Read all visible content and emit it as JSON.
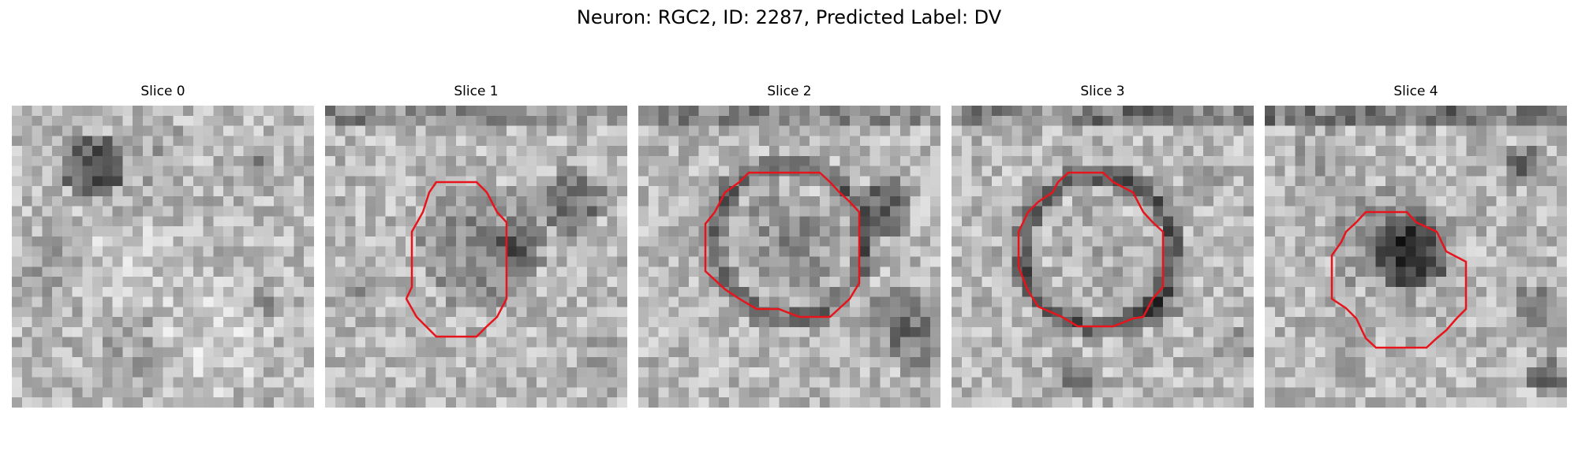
{
  "figure": {
    "title": "Neuron: RGC2, ID: 2287, Predicted Label: DV",
    "outline_color": "#e8141c",
    "colormap": "gray"
  },
  "slices": [
    {
      "title": "Slice 0",
      "has_outline": false
    },
    {
      "title": "Slice 1",
      "has_outline": true
    },
    {
      "title": "Slice 2",
      "has_outline": true
    },
    {
      "title": "Slice 3",
      "has_outline": true
    },
    {
      "title": "Slice 4",
      "has_outline": true
    }
  ]
}
